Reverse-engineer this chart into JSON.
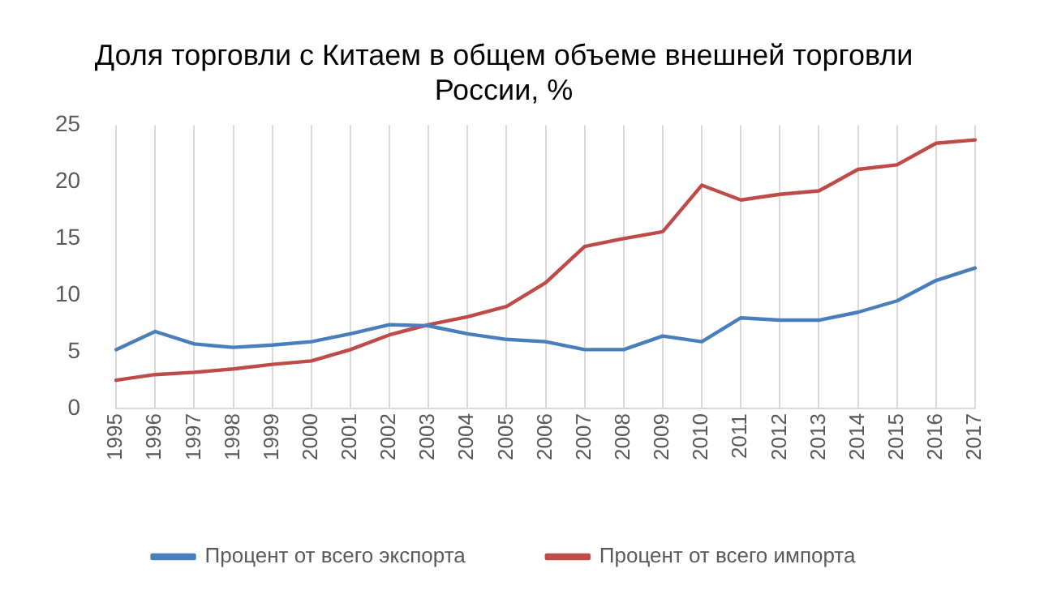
{
  "chart_data": {
    "type": "line",
    "title": "Доля торговли с Китаем в общем объеме внешней торговли России, %",
    "categories": [
      "1995",
      "1996",
      "1997",
      "1998",
      "1999",
      "2000",
      "2001",
      "2002",
      "2003",
      "2004",
      "2005",
      "2006",
      "2007",
      "2008",
      "2009",
      "2010",
      "2011",
      "2012",
      "2013",
      "2014",
      "2015",
      "2016",
      "2017"
    ],
    "series": [
      {
        "name": "Процент от всего экспорта",
        "color": "#4a7ebb",
        "values": [
          5.2,
          6.8,
          5.7,
          5.4,
          5.6,
          5.9,
          6.6,
          7.4,
          7.3,
          6.6,
          6.1,
          5.9,
          5.2,
          5.2,
          6.4,
          5.9,
          8.0,
          7.8,
          7.8,
          8.5,
          9.5,
          11.3,
          12.4
        ]
      },
      {
        "name": "Процент от всего импорта",
        "color": "#be4b48",
        "values": [
          2.5,
          3.0,
          3.2,
          3.5,
          3.9,
          4.2,
          5.2,
          6.5,
          7.4,
          8.1,
          9.0,
          11.1,
          14.3,
          15.0,
          15.6,
          19.7,
          18.4,
          18.9,
          19.2,
          21.1,
          21.5,
          23.4,
          23.7
        ]
      }
    ],
    "ylim": [
      0,
      25
    ],
    "yticks": [
      0,
      5,
      10,
      15,
      20,
      25
    ],
    "grid": "x",
    "legend": "bottom",
    "marker": "none",
    "line_style": "solid"
  }
}
